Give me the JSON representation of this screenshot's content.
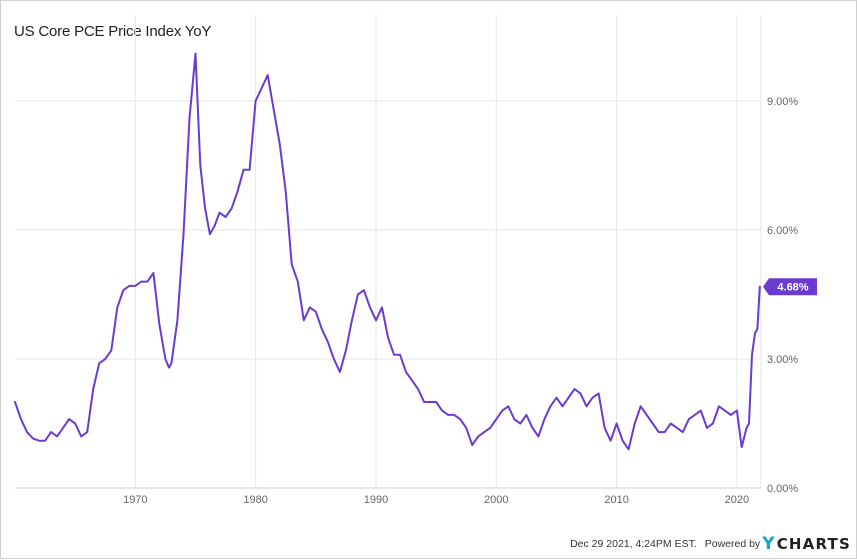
{
  "title": "US Core PCE Price Index YoY",
  "footer": {
    "timestamp": "Dec 29 2021, 4:24PM EST.",
    "powered_by": "Powered by",
    "logo_mark": "Y",
    "logo_text": "CHARTS"
  },
  "colors": {
    "line": "#6a3bd1",
    "grid": "#e6e6e6",
    "axis_text": "#666666",
    "tag_bg": "#6a3bd1",
    "tag_text": "#ffffff",
    "logo_accent": "#1aa3d1"
  },
  "chart_data": {
    "type": "line",
    "title": "US Core PCE Price Index YoY",
    "xlim": [
      1960,
      2022
    ],
    "ylim": [
      0,
      10.3
    ],
    "x_ticks": [
      1970,
      1980,
      1990,
      2000,
      2010,
      2020
    ],
    "y_ticks": [
      0,
      3,
      6,
      9
    ],
    "y_tick_labels": [
      "0.00%",
      "3.00%",
      "6.00%",
      "9.00%"
    ],
    "grid": true,
    "legend": "none",
    "last_value_label": "4.68%",
    "series": [
      {
        "values": [
          [
            1960.0,
            2.0
          ],
          [
            1960.5,
            1.6
          ],
          [
            1961.0,
            1.3
          ],
          [
            1961.5,
            1.15
          ],
          [
            1962.0,
            1.1
          ],
          [
            1962.5,
            1.1
          ],
          [
            1963.0,
            1.3
          ],
          [
            1963.5,
            1.2
          ],
          [
            1964.0,
            1.4
          ],
          [
            1964.5,
            1.6
          ],
          [
            1965.0,
            1.5
          ],
          [
            1965.5,
            1.2
          ],
          [
            1966.0,
            1.3
          ],
          [
            1966.5,
            2.3
          ],
          [
            1967.0,
            2.9
          ],
          [
            1967.5,
            3.0
          ],
          [
            1968.0,
            3.2
          ],
          [
            1968.5,
            4.2
          ],
          [
            1969.0,
            4.6
          ],
          [
            1969.5,
            4.7
          ],
          [
            1970.0,
            4.7
          ],
          [
            1970.5,
            4.8
          ],
          [
            1971.0,
            4.8
          ],
          [
            1971.5,
            5.0
          ],
          [
            1972.0,
            3.8
          ],
          [
            1972.5,
            3.0
          ],
          [
            1972.8,
            2.8
          ],
          [
            1973.0,
            2.9
          ],
          [
            1973.5,
            3.9
          ],
          [
            1974.0,
            5.9
          ],
          [
            1974.5,
            8.6
          ],
          [
            1975.0,
            10.1
          ],
          [
            1975.4,
            7.5
          ],
          [
            1975.8,
            6.5
          ],
          [
            1976.2,
            5.9
          ],
          [
            1976.6,
            6.1
          ],
          [
            1977.0,
            6.4
          ],
          [
            1977.5,
            6.3
          ],
          [
            1978.0,
            6.5
          ],
          [
            1978.5,
            6.9
          ],
          [
            1979.0,
            7.4
          ],
          [
            1979.5,
            7.4
          ],
          [
            1980.0,
            9.0
          ],
          [
            1980.5,
            9.3
          ],
          [
            1981.0,
            9.6
          ],
          [
            1981.5,
            8.8
          ],
          [
            1982.0,
            8.0
          ],
          [
            1982.5,
            6.9
          ],
          [
            1983.0,
            5.2
          ],
          [
            1983.5,
            4.8
          ],
          [
            1984.0,
            3.9
          ],
          [
            1984.5,
            4.2
          ],
          [
            1985.0,
            4.1
          ],
          [
            1985.5,
            3.7
          ],
          [
            1986.0,
            3.4
          ],
          [
            1986.5,
            3.0
          ],
          [
            1987.0,
            2.7
          ],
          [
            1987.5,
            3.2
          ],
          [
            1988.0,
            3.9
          ],
          [
            1988.5,
            4.5
          ],
          [
            1989.0,
            4.6
          ],
          [
            1989.5,
            4.2
          ],
          [
            1990.0,
            3.9
          ],
          [
            1990.5,
            4.2
          ],
          [
            1991.0,
            3.5
          ],
          [
            1991.5,
            3.1
          ],
          [
            1992.0,
            3.1
          ],
          [
            1992.5,
            2.7
          ],
          [
            1993.0,
            2.5
          ],
          [
            1993.5,
            2.3
          ],
          [
            1994.0,
            2.0
          ],
          [
            1994.5,
            2.0
          ],
          [
            1995.0,
            2.0
          ],
          [
            1995.5,
            1.8
          ],
          [
            1996.0,
            1.7
          ],
          [
            1996.5,
            1.7
          ],
          [
            1997.0,
            1.6
          ],
          [
            1997.5,
            1.4
          ],
          [
            1998.0,
            1.0
          ],
          [
            1998.5,
            1.2
          ],
          [
            1999.0,
            1.3
          ],
          [
            1999.5,
            1.4
          ],
          [
            2000.0,
            1.6
          ],
          [
            2000.5,
            1.8
          ],
          [
            2001.0,
            1.9
          ],
          [
            2001.5,
            1.6
          ],
          [
            2002.0,
            1.5
          ],
          [
            2002.5,
            1.7
          ],
          [
            2003.0,
            1.4
          ],
          [
            2003.5,
            1.2
          ],
          [
            2004.0,
            1.6
          ],
          [
            2004.5,
            1.9
          ],
          [
            2005.0,
            2.1
          ],
          [
            2005.5,
            1.9
          ],
          [
            2006.0,
            2.1
          ],
          [
            2006.5,
            2.3
          ],
          [
            2007.0,
            2.2
          ],
          [
            2007.5,
            1.9
          ],
          [
            2008.0,
            2.1
          ],
          [
            2008.5,
            2.2
          ],
          [
            2009.0,
            1.4
          ],
          [
            2009.5,
            1.1
          ],
          [
            2010.0,
            1.5
          ],
          [
            2010.5,
            1.1
          ],
          [
            2011.0,
            0.9
          ],
          [
            2011.5,
            1.5
          ],
          [
            2012.0,
            1.9
          ],
          [
            2012.5,
            1.7
          ],
          [
            2013.0,
            1.5
          ],
          [
            2013.5,
            1.3
          ],
          [
            2014.0,
            1.3
          ],
          [
            2014.5,
            1.5
          ],
          [
            2015.0,
            1.4
          ],
          [
            2015.5,
            1.3
          ],
          [
            2016.0,
            1.6
          ],
          [
            2016.5,
            1.7
          ],
          [
            2017.0,
            1.8
          ],
          [
            2017.5,
            1.4
          ],
          [
            2018.0,
            1.5
          ],
          [
            2018.5,
            1.9
          ],
          [
            2019.0,
            1.8
          ],
          [
            2019.5,
            1.7
          ],
          [
            2020.0,
            1.8
          ],
          [
            2020.4,
            0.95
          ],
          [
            2020.8,
            1.4
          ],
          [
            2021.0,
            1.5
          ],
          [
            2021.25,
            3.1
          ],
          [
            2021.5,
            3.6
          ],
          [
            2021.7,
            3.7
          ],
          [
            2021.9,
            4.68
          ]
        ]
      }
    ]
  }
}
